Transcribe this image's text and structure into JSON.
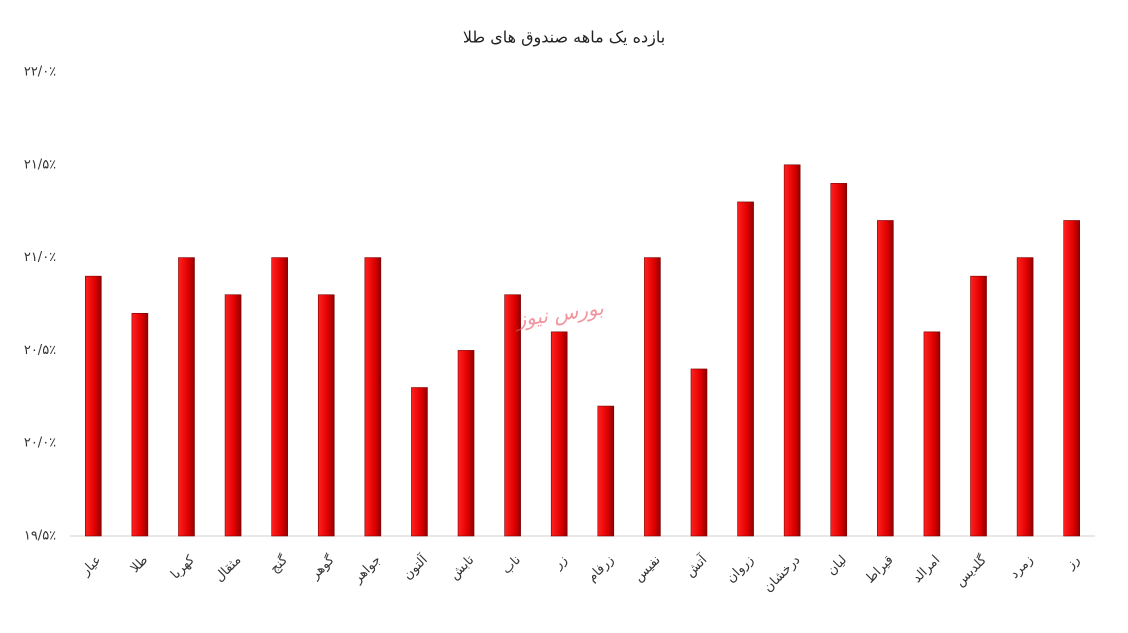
{
  "chart_data": {
    "type": "bar",
    "title": "بازده یک ماهه صندوق های طلا",
    "watermark": "بورس نیوز",
    "categories": [
      "عیار",
      "طلا",
      "کهربا",
      "مثقال",
      "گنج",
      "گوهر",
      "جواهر",
      "آلتون",
      "تابش",
      "ناب",
      "زر",
      "زرفام",
      "نفیس",
      "آتش",
      "زروان",
      "درخشان",
      "لیان",
      "قیراط",
      "امرالد",
      "گلدیس",
      "زمرد",
      "رز"
    ],
    "values": [
      20.9,
      20.7,
      21.0,
      20.8,
      21.0,
      20.8,
      21.0,
      20.3,
      20.5,
      20.8,
      20.6,
      20.2,
      21.0,
      20.4,
      21.3,
      21.5,
      21.4,
      21.2,
      20.6,
      20.9,
      21.0,
      21.2
    ],
    "color": "#e00000",
    "ylim": [
      19.5,
      22.0
    ],
    "yticks": [
      {
        "value": 19.5,
        "label": "۱۹/۵٪"
      },
      {
        "value": 20.0,
        "label": "۲۰/۰٪"
      },
      {
        "value": 20.5,
        "label": "۲۰/۵٪"
      },
      {
        "value": 21.0,
        "label": "۲۱/۰٪"
      },
      {
        "value": 21.5,
        "label": "۲۱/۵٪"
      },
      {
        "value": 22.0,
        "label": "۲۲/۰٪"
      }
    ],
    "grid": false
  }
}
